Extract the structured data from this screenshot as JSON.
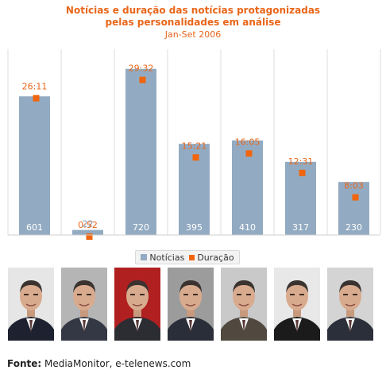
{
  "header": {
    "title_line1": "Notícias e duração das notícias protagonizadas",
    "title_line2": "pelas personalidades em análise",
    "subtitle": "Jan-Set 2006"
  },
  "legend": {
    "series1": "Notícias",
    "series2": "Duração"
  },
  "footer": {
    "label": "Fonte:",
    "text": " MediaMonitor, e-telenews.com"
  },
  "colors": {
    "bar": "#93abc2",
    "marker": "#f0650d",
    "label_orange": "#e8661a",
    "label_blue": "#7d98b6"
  },
  "photos": [
    {
      "icon": "person-photo-1",
      "background": "#e6e6e6",
      "suit": "#1e2230"
    },
    {
      "icon": "person-photo-2",
      "background": "#b5b5b5",
      "suit": "#343844"
    },
    {
      "icon": "person-photo-3",
      "background": "#b02020",
      "suit": "#2c2c33"
    },
    {
      "icon": "person-photo-4",
      "background": "#9c9c9c",
      "suit": "#2a2e38"
    },
    {
      "icon": "person-photo-5",
      "background": "#c9c9c9",
      "suit": "#51493f"
    },
    {
      "icon": "person-photo-6",
      "background": "#e8e8e8",
      "suit": "#1b1b1b"
    },
    {
      "icon": "person-photo-7",
      "background": "#d4d4d4",
      "suit": "#2b2f39"
    }
  ],
  "chart_data": {
    "type": "bar",
    "title": "Notícias e duração das notícias protagonizadas pelas personalidades em análise",
    "subtitle": "Jan-Set 2006",
    "categories": [
      "",
      "",
      "",
      "",
      "",
      "",
      ""
    ],
    "series": [
      {
        "name": "Notícias",
        "type": "bar",
        "values": [
          601,
          22,
          720,
          395,
          410,
          317,
          230
        ]
      },
      {
        "name": "Duração",
        "type": "marker",
        "values": [
          "26:11",
          "0:52",
          "29:32",
          "15:21",
          "16:05",
          "12:31",
          "8:03"
        ],
        "minutes": [
          26.18,
          0.87,
          29.53,
          15.35,
          16.08,
          12.52,
          8.05
        ]
      }
    ],
    "ylim": [
      0,
      800
    ],
    "grid": "vertical-dividers",
    "legend_position": "bottom-center"
  }
}
